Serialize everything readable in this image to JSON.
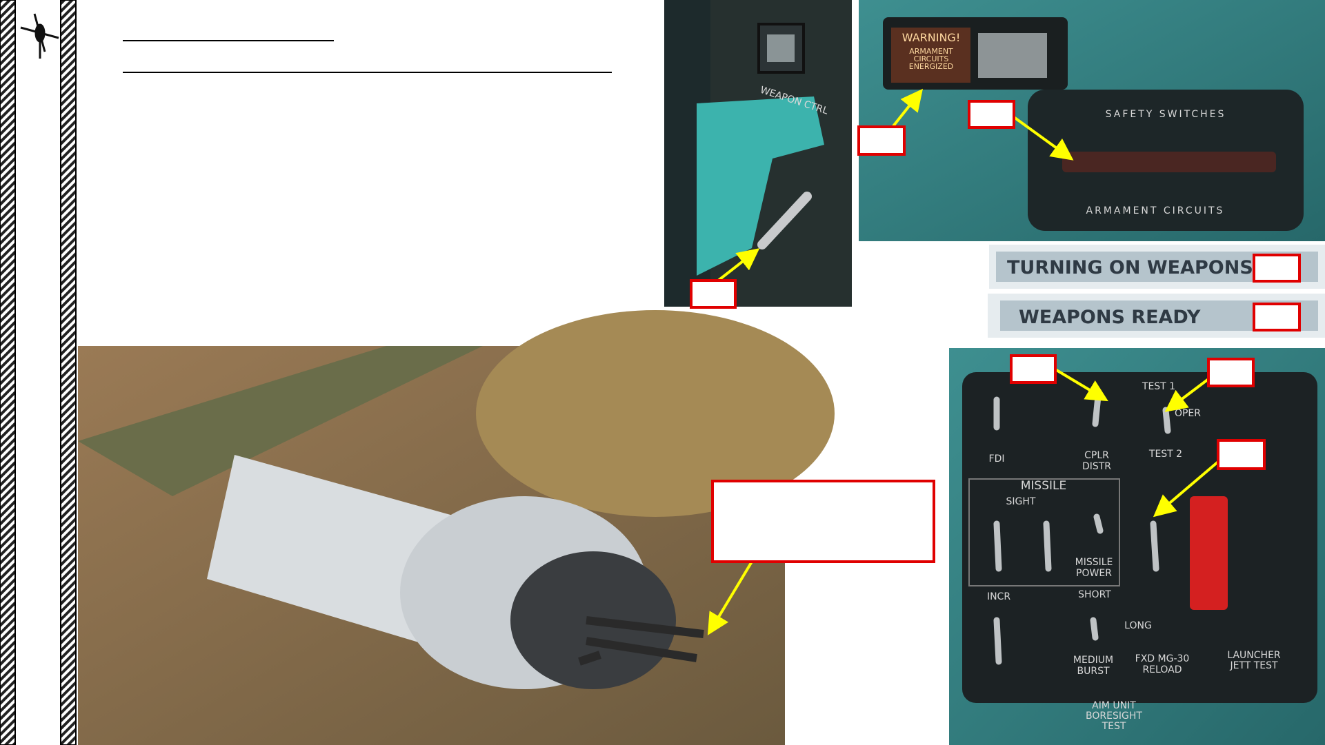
{
  "banners": [
    "TURNING ON WEAPONS",
    "WEAPONS READY"
  ],
  "warning_light": {
    "title": "WARNING!",
    "lines": [
      "ARMAMENT",
      "CIRCUITS",
      "ENERGIZED"
    ]
  },
  "safety_panel": {
    "title": "SAFETY SWITCHES",
    "footer": "ARMAMENT CIRCUITS"
  },
  "weapon_ctrl_panel": {
    "label": "WEAPON CTRL"
  },
  "armament_panel": {
    "labels": [
      "TEST 1",
      "OPER",
      "TEST 2",
      "FDI",
      "CPLR",
      "DISTR",
      "MISSILE",
      "SIGHT",
      "INCR",
      "SHORT",
      "LONG",
      "MISSILE",
      "POWER",
      "MEDIUM",
      "BURST",
      "FXD MG-30",
      "RELOAD",
      "LAUNCHER",
      "JETT TEST",
      "AIM UNIT",
      "BORESIGHT",
      "TEST"
    ]
  }
}
